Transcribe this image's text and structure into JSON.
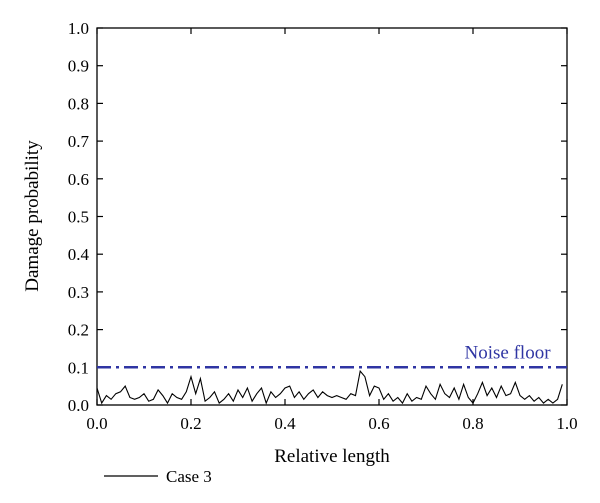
{
  "chart_data": {
    "type": "line",
    "title": "",
    "xlabel": "Relative length",
    "ylabel": "Damage probability",
    "xlim": [
      0,
      1
    ],
    "ylim": [
      0,
      1
    ],
    "xticks": [
      "0.0",
      "0.2",
      "0.4",
      "0.6",
      "0.8",
      "1.0"
    ],
    "yticks": [
      "0.0",
      "0.1",
      "0.2",
      "0.3",
      "0.4",
      "0.5",
      "0.6",
      "0.7",
      "0.8",
      "0.9",
      "1.0"
    ],
    "grid": false,
    "legend_position": "bottom-left",
    "series": [
      {
        "name": "Case 3",
        "color": "#000000",
        "x": [
          0.0,
          0.01,
          0.02,
          0.03,
          0.04,
          0.05,
          0.06,
          0.07,
          0.08,
          0.09,
          0.1,
          0.11,
          0.12,
          0.13,
          0.14,
          0.15,
          0.16,
          0.17,
          0.18,
          0.19,
          0.2,
          0.21,
          0.22,
          0.23,
          0.24,
          0.25,
          0.26,
          0.27,
          0.28,
          0.29,
          0.3,
          0.31,
          0.32,
          0.33,
          0.34,
          0.35,
          0.36,
          0.37,
          0.38,
          0.39,
          0.4,
          0.41,
          0.42,
          0.43,
          0.44,
          0.45,
          0.46,
          0.47,
          0.48,
          0.49,
          0.5,
          0.51,
          0.52,
          0.53,
          0.54,
          0.55,
          0.56,
          0.57,
          0.58,
          0.59,
          0.6,
          0.61,
          0.62,
          0.63,
          0.64,
          0.65,
          0.66,
          0.67,
          0.68,
          0.69,
          0.7,
          0.71,
          0.72,
          0.73,
          0.74,
          0.75,
          0.76,
          0.77,
          0.78,
          0.79,
          0.8,
          0.81,
          0.82,
          0.83,
          0.84,
          0.85,
          0.86,
          0.87,
          0.88,
          0.89,
          0.9,
          0.91,
          0.92,
          0.93,
          0.94,
          0.95,
          0.96,
          0.97,
          0.98,
          0.99
        ],
        "y": [
          0.045,
          0.005,
          0.025,
          0.015,
          0.03,
          0.035,
          0.05,
          0.02,
          0.015,
          0.02,
          0.03,
          0.01,
          0.015,
          0.04,
          0.025,
          0.005,
          0.03,
          0.02,
          0.015,
          0.035,
          0.075,
          0.03,
          0.07,
          0.01,
          0.02,
          0.035,
          0.005,
          0.015,
          0.03,
          0.01,
          0.04,
          0.02,
          0.045,
          0.01,
          0.03,
          0.045,
          0.005,
          0.035,
          0.02,
          0.03,
          0.045,
          0.05,
          0.02,
          0.035,
          0.015,
          0.03,
          0.04,
          0.02,
          0.035,
          0.025,
          0.02,
          0.025,
          0.02,
          0.015,
          0.03,
          0.025,
          0.09,
          0.075,
          0.025,
          0.05,
          0.045,
          0.015,
          0.03,
          0.01,
          0.02,
          0.005,
          0.03,
          0.01,
          0.02,
          0.015,
          0.05,
          0.03,
          0.015,
          0.055,
          0.03,
          0.02,
          0.045,
          0.015,
          0.055,
          0.02,
          0.005,
          0.03,
          0.06,
          0.025,
          0.045,
          0.02,
          0.05,
          0.025,
          0.03,
          0.06,
          0.025,
          0.015,
          0.025,
          0.01,
          0.02,
          0.005,
          0.015,
          0.005,
          0.015,
          0.055
        ]
      }
    ],
    "reference_lines": [
      {
        "label": "Noise floor",
        "y": 0.1,
        "color": "#2f35a3",
        "style": "dash-dot"
      }
    ]
  }
}
